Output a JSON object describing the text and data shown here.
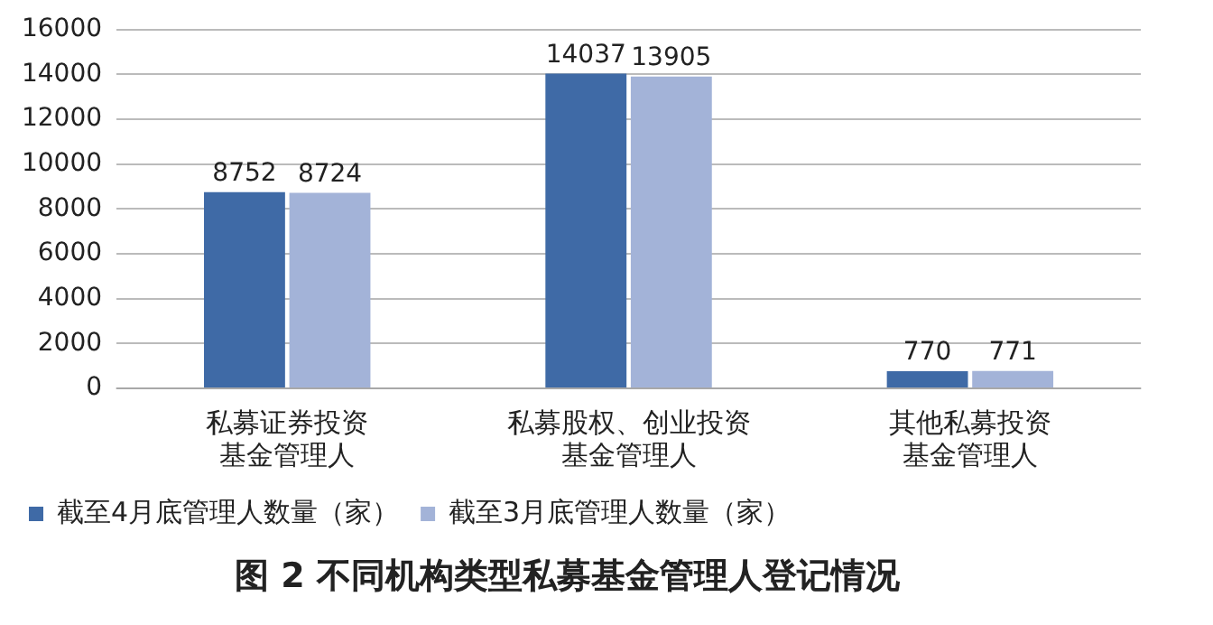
{
  "chart_data": {
    "type": "bar",
    "title": "图 2  不同机构类型私募基金管理人登记情况",
    "categories": [
      "私募证券投资基金管理人",
      "私募股权、创业投资基金管理人",
      "其他私募投资基金管理人"
    ],
    "series": [
      {
        "name": "截至4月底管理人数量（家）",
        "color": "#3f6aa6",
        "values": [
          8752,
          14037,
          770
        ]
      },
      {
        "name": "截至3月底管理人数量（家）",
        "color": "#a3b3d8",
        "values": [
          8724,
          13905,
          771
        ]
      }
    ],
    "ylim": [
      0,
      16000
    ],
    "yticks": [
      0,
      2000,
      4000,
      6000,
      8000,
      10000,
      12000,
      14000,
      16000
    ],
    "grid": "y",
    "legend": "bottom",
    "data_labels": true
  }
}
